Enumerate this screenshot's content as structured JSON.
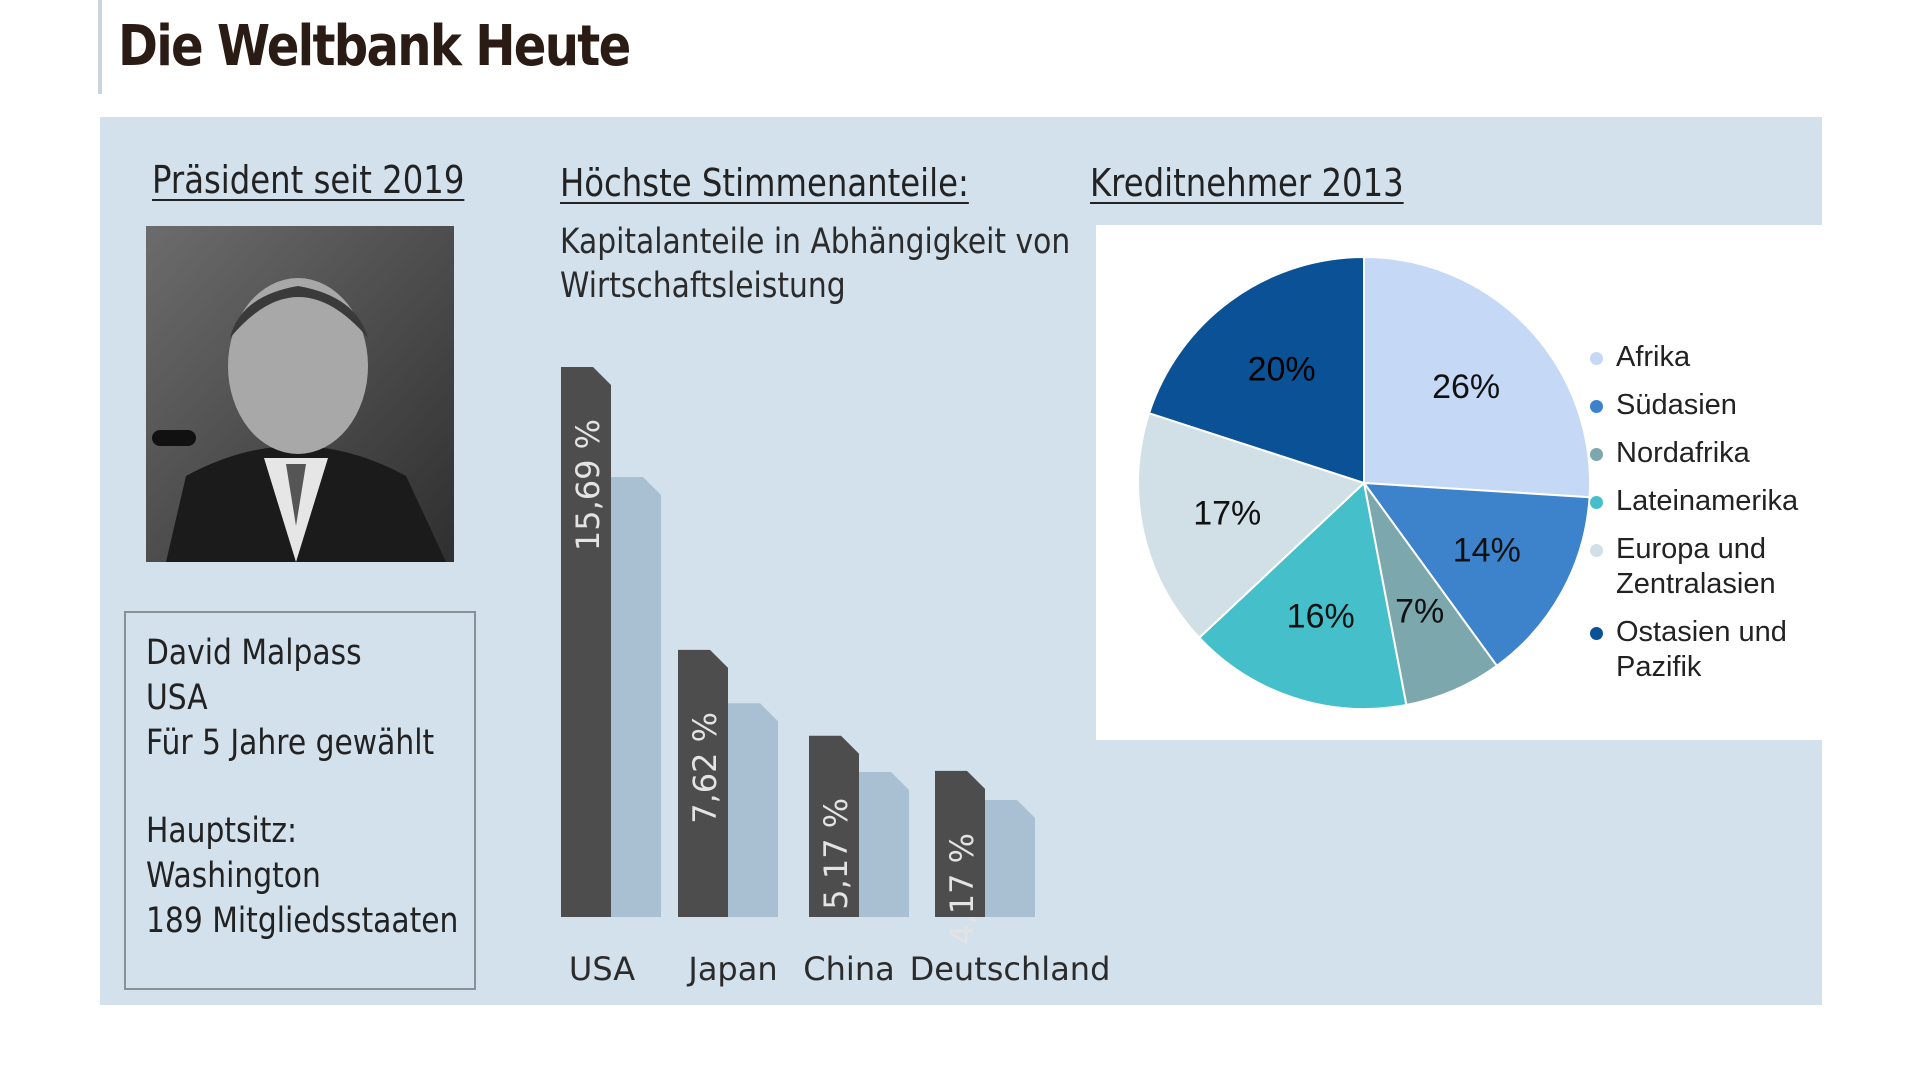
{
  "page": {
    "title": "Die Weltbank Heute"
  },
  "president": {
    "heading": "Präsident seit 2019",
    "lines": [
      "David Malpass",
      "USA",
      "Für 5 Jahre gewählt",
      "",
      "Hauptsitz:",
      "Washington",
      "189 Mitgliedsstaaten"
    ]
  },
  "votes": {
    "heading": "Höchste Stimmenanteile:",
    "subtitle_line1": "Kapitalanteile in Abhängigkeit von",
    "subtitle_line2": "Wirtschaftsleistung"
  },
  "loans": {
    "heading": "Kreditnehmer 2013"
  },
  "colors": {
    "panel": "#d3e1ec",
    "bar_dark": "#4d4d4d",
    "bar_light": "#a9c0d3",
    "afrika": "#c5d8f5",
    "suedasien": "#3d83cc",
    "nordafrika": "#7ba7ad",
    "lateinamerika": "#45bfc9",
    "europa": "#d1e0e6",
    "ostasien": "#0b5196"
  },
  "chart_data": [
    {
      "type": "bar",
      "categories": [
        "USA",
        "Japan",
        "China",
        "Deutschland"
      ],
      "values": [
        15.69,
        7.62,
        5.17,
        4.17
      ],
      "value_labels": [
        "15,69 %",
        "7,62 %",
        "5,17 %",
        "4,17 %"
      ]
    },
    {
      "type": "pie",
      "labels": [
        "Afrika",
        "Südasien",
        "Nordafrika",
        "Lateinamerika",
        "Europa und Zentralasien",
        "Ostasien und Pazifik"
      ],
      "legend_lines": [
        [
          "Afrika"
        ],
        [
          "Südasien"
        ],
        [
          "Nordafrika"
        ],
        [
          "Lateinamerika"
        ],
        [
          "Europa und",
          "Zentralasien"
        ],
        [
          "Ostasien und",
          "Pazifik"
        ]
      ],
      "values": [
        26,
        14,
        7,
        16,
        17,
        20
      ],
      "value_labels": [
        "26%",
        "14%",
        "7%",
        "16%",
        "17%",
        "20%"
      ],
      "legend_position": "right"
    }
  ]
}
